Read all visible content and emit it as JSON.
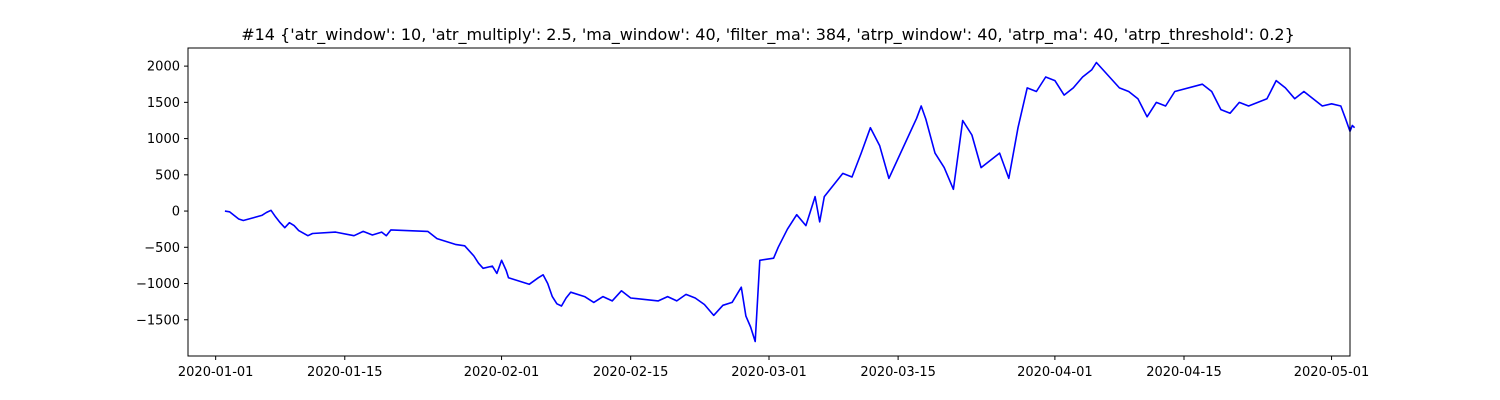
{
  "chart_data": {
    "type": "line",
    "title": "#14 {'atr_window': 10, 'atr_multiply': 2.5, 'ma_window': 40, 'filter_ma': 384, 'atrp_window': 40, 'atrp_ma': 40, 'atrp_threshold': 0.2}",
    "xlabel": "",
    "ylabel": "",
    "grid": false,
    "legend": "none",
    "xlim": [
      "2019-12-29",
      "2020-05-03"
    ],
    "ylim": [
      -2000,
      2250
    ],
    "x_ticks": [
      "2020-01-01",
      "2020-01-15",
      "2020-02-01",
      "2020-02-15",
      "2020-03-01",
      "2020-03-15",
      "2020-04-01",
      "2020-04-15",
      "2020-05-01"
    ],
    "y_ticks": [
      -1500,
      -1000,
      -500,
      0,
      500,
      1000,
      1500,
      2000
    ],
    "series": [
      {
        "color": "#0000ff",
        "points": [
          [
            "2020-01-02",
            0
          ],
          [
            "2020-01-02T12:00",
            -10
          ],
          [
            "2020-01-03",
            -60
          ],
          [
            "2020-01-03T12:00",
            -110
          ],
          [
            "2020-01-04",
            -130
          ],
          [
            "2020-01-06",
            -60
          ],
          [
            "2020-01-06T12:00",
            -20
          ],
          [
            "2020-01-07",
            10
          ],
          [
            "2020-01-07T12:00",
            -80
          ],
          [
            "2020-01-08",
            -160
          ],
          [
            "2020-01-08T12:00",
            -230
          ],
          [
            "2020-01-09",
            -160
          ],
          [
            "2020-01-09T12:00",
            -200
          ],
          [
            "2020-01-10",
            -270
          ],
          [
            "2020-01-11",
            -340
          ],
          [
            "2020-01-11T12:00",
            -310
          ],
          [
            "2020-01-14",
            -290
          ],
          [
            "2020-01-16",
            -340
          ],
          [
            "2020-01-17",
            -280
          ],
          [
            "2020-01-18",
            -330
          ],
          [
            "2020-01-19",
            -290
          ],
          [
            "2020-01-19T12:00",
            -340
          ],
          [
            "2020-01-20",
            -260
          ],
          [
            "2020-01-24",
            -280
          ],
          [
            "2020-01-25",
            -380
          ],
          [
            "2020-01-27",
            -460
          ],
          [
            "2020-01-28",
            -480
          ],
          [
            "2020-01-29",
            -620
          ],
          [
            "2020-01-29T12:00",
            -720
          ],
          [
            "2020-01-30",
            -790
          ],
          [
            "2020-01-31",
            -760
          ],
          [
            "2020-01-31T12:00",
            -860
          ],
          [
            "2020-02-01",
            -680
          ],
          [
            "2020-02-01T12:00",
            -820
          ],
          [
            "2020-02-01T18:00",
            -920
          ],
          [
            "2020-02-04",
            -1010
          ],
          [
            "2020-02-05",
            -920
          ],
          [
            "2020-02-05T12:00",
            -880
          ],
          [
            "2020-02-06",
            -1000
          ],
          [
            "2020-02-06T12:00",
            -1180
          ],
          [
            "2020-02-07",
            -1280
          ],
          [
            "2020-02-07T12:00",
            -1310
          ],
          [
            "2020-02-08",
            -1200
          ],
          [
            "2020-02-08T12:00",
            -1120
          ],
          [
            "2020-02-10",
            -1180
          ],
          [
            "2020-02-11",
            -1260
          ],
          [
            "2020-02-12",
            -1180
          ],
          [
            "2020-02-13",
            -1240
          ],
          [
            "2020-02-14",
            -1100
          ],
          [
            "2020-02-15",
            -1200
          ],
          [
            "2020-02-18",
            -1240
          ],
          [
            "2020-02-19",
            -1180
          ],
          [
            "2020-02-20",
            -1240
          ],
          [
            "2020-02-21",
            -1150
          ],
          [
            "2020-02-22",
            -1200
          ],
          [
            "2020-02-23",
            -1290
          ],
          [
            "2020-02-24",
            -1440
          ],
          [
            "2020-02-25",
            -1300
          ],
          [
            "2020-02-26",
            -1260
          ],
          [
            "2020-02-27",
            -1050
          ],
          [
            "2020-02-27T12:00",
            -1450
          ],
          [
            "2020-02-28",
            -1600
          ],
          [
            "2020-02-28T12:00",
            -1800
          ],
          [
            "2020-02-29",
            -680
          ],
          [
            "2020-03-01T12:00",
            -650
          ],
          [
            "2020-03-02",
            -500
          ],
          [
            "2020-03-03",
            -250
          ],
          [
            "2020-03-04",
            -50
          ],
          [
            "2020-03-05",
            -200
          ],
          [
            "2020-03-06",
            200
          ],
          [
            "2020-03-06T12:00",
            -150
          ],
          [
            "2020-03-07",
            200
          ],
          [
            "2020-03-09",
            520
          ],
          [
            "2020-03-10",
            470
          ],
          [
            "2020-03-11",
            800
          ],
          [
            "2020-03-12",
            1150
          ],
          [
            "2020-03-13",
            900
          ],
          [
            "2020-03-14",
            450
          ],
          [
            "2020-03-17",
            1280
          ],
          [
            "2020-03-17T12:00",
            1450
          ],
          [
            "2020-03-18",
            1270
          ],
          [
            "2020-03-19",
            800
          ],
          [
            "2020-03-20",
            600
          ],
          [
            "2020-03-21",
            300
          ],
          [
            "2020-03-22",
            1250
          ],
          [
            "2020-03-23",
            1050
          ],
          [
            "2020-03-24",
            600
          ],
          [
            "2020-03-26",
            800
          ],
          [
            "2020-03-27",
            450
          ],
          [
            "2020-03-28",
            1150
          ],
          [
            "2020-03-29",
            1700
          ],
          [
            "2020-03-30",
            1650
          ],
          [
            "2020-03-31",
            1850
          ],
          [
            "2020-04-01",
            1800
          ],
          [
            "2020-04-02",
            1600
          ],
          [
            "2020-04-03",
            1700
          ],
          [
            "2020-04-04",
            1850
          ],
          [
            "2020-04-05",
            1950
          ],
          [
            "2020-04-05T12:00",
            2050
          ],
          [
            "2020-04-08",
            1700
          ],
          [
            "2020-04-09",
            1650
          ],
          [
            "2020-04-10",
            1550
          ],
          [
            "2020-04-11",
            1300
          ],
          [
            "2020-04-12",
            1500
          ],
          [
            "2020-04-13",
            1450
          ],
          [
            "2020-04-14",
            1650
          ],
          [
            "2020-04-17",
            1750
          ],
          [
            "2020-04-18",
            1650
          ],
          [
            "2020-04-19",
            1400
          ],
          [
            "2020-04-20",
            1350
          ],
          [
            "2020-04-21",
            1500
          ],
          [
            "2020-04-22",
            1450
          ],
          [
            "2020-04-23",
            1500
          ],
          [
            "2020-04-24",
            1550
          ],
          [
            "2020-04-25",
            1800
          ],
          [
            "2020-04-26",
            1700
          ],
          [
            "2020-04-27",
            1550
          ],
          [
            "2020-04-28",
            1650
          ],
          [
            "2020-04-29",
            1550
          ],
          [
            "2020-04-30",
            1450
          ],
          [
            "2020-05-01",
            1480
          ],
          [
            "2020-05-02",
            1450
          ],
          [
            "2020-05-02T12:00",
            1280
          ],
          [
            "2020-05-03",
            1100
          ],
          [
            "2020-05-03T06:00",
            1180
          ],
          [
            "2020-05-03T12:00",
            1150
          ]
        ]
      }
    ]
  }
}
